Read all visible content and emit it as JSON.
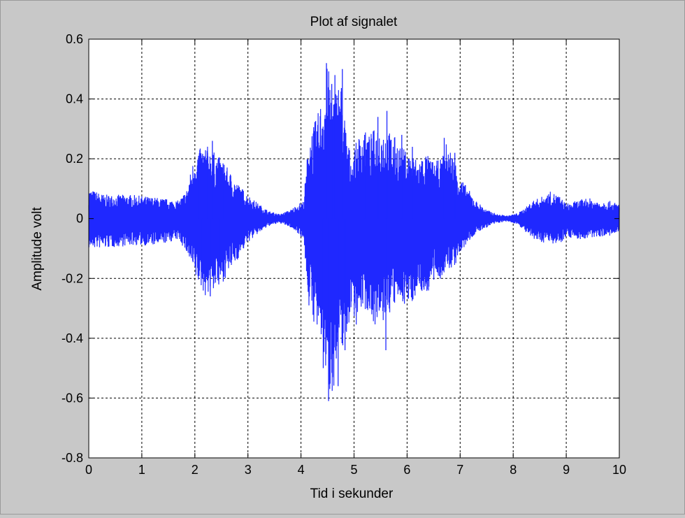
{
  "chart_data": {
    "type": "line",
    "title": "Plot af signalet",
    "xlabel": "Tid i sekunder",
    "ylabel": "Amplitude volt",
    "xlim": [
      0,
      10
    ],
    "ylim": [
      -0.8,
      0.6
    ],
    "xticks": [
      0,
      1,
      2,
      3,
      4,
      5,
      6,
      7,
      8,
      9,
      10
    ],
    "yticks": [
      -0.8,
      -0.6,
      -0.4,
      -0.2,
      0,
      0.2,
      0.4,
      0.6
    ],
    "xtick_labels": [
      "0",
      "1",
      "2",
      "3",
      "4",
      "5",
      "6",
      "7",
      "8",
      "9",
      "10"
    ],
    "ytick_labels": [
      "-0.8",
      "-0.6",
      "-0.4",
      "-0.2",
      "0",
      "0.2",
      "0.4",
      "0.6"
    ],
    "grid": true,
    "grid_style": "dashed",
    "series": [
      {
        "color": "#1f28ff",
        "envelope": {
          "x": [
            0,
            0.3,
            0.8,
            1.3,
            1.7,
            1.85,
            2.0,
            2.2,
            2.5,
            2.8,
            3.0,
            3.2,
            3.4,
            3.6,
            3.8,
            3.95,
            4.05,
            4.15,
            4.3,
            4.45,
            4.5,
            4.6,
            4.75,
            4.85,
            4.95,
            5.05,
            5.15,
            5.3,
            5.45,
            5.6,
            5.75,
            5.9,
            6.05,
            6.2,
            6.35,
            6.5,
            6.65,
            6.75,
            6.9,
            7.0,
            7.15,
            7.3,
            7.5,
            7.7,
            7.9,
            8.1,
            8.25,
            8.35,
            8.5,
            8.7,
            8.85,
            9.0,
            9.2,
            9.4,
            9.6,
            9.8,
            10.0
          ],
          "max": [
            0.1,
            0.08,
            0.08,
            0.07,
            0.06,
            0.1,
            0.22,
            0.25,
            0.2,
            0.12,
            0.08,
            0.05,
            0.025,
            0.015,
            0.03,
            0.05,
            0.06,
            0.28,
            0.34,
            0.45,
            0.52,
            0.42,
            0.48,
            0.3,
            0.2,
            0.26,
            0.3,
            0.28,
            0.32,
            0.3,
            0.28,
            0.24,
            0.22,
            0.2,
            0.22,
            0.19,
            0.2,
            0.26,
            0.2,
            0.14,
            0.1,
            0.06,
            0.03,
            0.015,
            0.01,
            0.02,
            0.04,
            0.06,
            0.07,
            0.09,
            0.08,
            0.05,
            0.06,
            0.07,
            0.06,
            0.06,
            0.05
          ],
          "min": [
            -0.1,
            -0.1,
            -0.09,
            -0.09,
            -0.07,
            -0.12,
            -0.2,
            -0.26,
            -0.22,
            -0.14,
            -0.08,
            -0.05,
            -0.025,
            -0.015,
            -0.03,
            -0.05,
            -0.07,
            -0.3,
            -0.38,
            -0.48,
            -0.6,
            -0.58,
            -0.44,
            -0.42,
            -0.3,
            -0.36,
            -0.3,
            -0.32,
            -0.38,
            -0.34,
            -0.3,
            -0.28,
            -0.3,
            -0.24,
            -0.26,
            -0.22,
            -0.2,
            -0.18,
            -0.16,
            -0.12,
            -0.08,
            -0.05,
            -0.03,
            -0.015,
            -0.01,
            -0.02,
            -0.05,
            -0.07,
            -0.08,
            -0.08,
            -0.09,
            -0.06,
            -0.07,
            -0.07,
            -0.06,
            -0.06,
            -0.05
          ]
        },
        "spikes": [
          {
            "x": 2.07,
            "y": 0.21
          },
          {
            "x": 2.14,
            "y": -0.2
          },
          {
            "x": 2.24,
            "y": 0.22
          },
          {
            "x": 2.33,
            "y": 0.26
          },
          {
            "x": 2.29,
            "y": -0.26
          },
          {
            "x": 2.45,
            "y": -0.22
          },
          {
            "x": 2.55,
            "y": 0.18
          },
          {
            "x": 4.42,
            "y": -0.5
          },
          {
            "x": 4.48,
            "y": 0.52
          },
          {
            "x": 4.52,
            "y": -0.61
          },
          {
            "x": 4.58,
            "y": 0.45
          },
          {
            "x": 4.64,
            "y": 0.48
          },
          {
            "x": 4.7,
            "y": -0.56
          },
          {
            "x": 4.78,
            "y": 0.5
          },
          {
            "x": 4.83,
            "y": -0.44
          },
          {
            "x": 5.2,
            "y": 0.28
          },
          {
            "x": 5.45,
            "y": 0.34
          },
          {
            "x": 5.62,
            "y": 0.36
          },
          {
            "x": 5.6,
            "y": -0.44
          },
          {
            "x": 5.9,
            "y": 0.28
          },
          {
            "x": 6.1,
            "y": 0.24
          },
          {
            "x": 6.7,
            "y": 0.27
          },
          {
            "x": 6.9,
            "y": 0.22
          }
        ]
      }
    ]
  }
}
